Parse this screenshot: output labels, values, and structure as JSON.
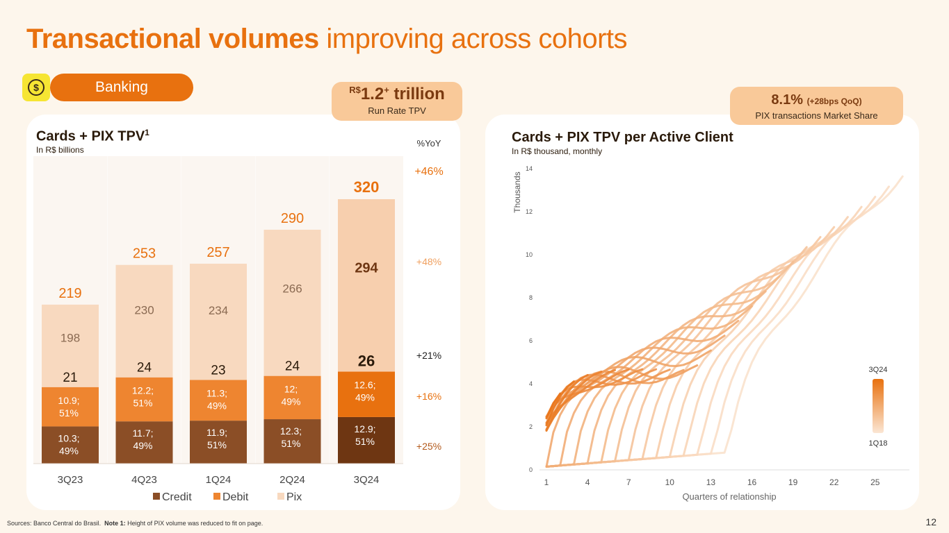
{
  "title_bold": "Transactional volumes",
  "title_rest": " improving across cohorts",
  "tag": {
    "icon": "dollar-coin-icon",
    "label": "Banking",
    "glyph": "$"
  },
  "badge_tpv": {
    "currency": "R$",
    "value": "1.2",
    "plus": "+",
    "unit": " trillion",
    "caption": "Run Rate TPV"
  },
  "badge_share": {
    "value": "8.1%",
    "delta": "(+28bps QoQ)",
    "caption": "PIX transactions Market Share"
  },
  "footer": {
    "sources": "Sources: Banco Central do Brasil.",
    "note_label": "Note 1:",
    "note_text": "Height of PIX volume was reduced to fit on page."
  },
  "page_number": "12",
  "colors": {
    "accent": "#e8710f",
    "credit": "#8b4e26",
    "debit": "#ee8530",
    "pix": "#f8d9bf",
    "card_total": "#2a1a0a"
  },
  "chart_data": [
    {
      "type": "bar",
      "title": "Cards + PIX TPV",
      "title_sup": "1",
      "subtitle": "In R$ billions",
      "yoy_header": "%YoY",
      "categories": [
        "3Q23",
        "4Q23",
        "1Q24",
        "2Q24",
        "3Q24"
      ],
      "series": [
        {
          "name": "Credit",
          "values": [
            10.3,
            11.7,
            11.9,
            12.3,
            12.9
          ],
          "share_labels": [
            "49%",
            "49%",
            "51%",
            "51%",
            "51%"
          ]
        },
        {
          "name": "Debit",
          "values": [
            10.9,
            12.2,
            11.3,
            12.0,
            12.6
          ],
          "share_labels": [
            "51%",
            "51%",
            "49%",
            "49%",
            "49%"
          ]
        },
        {
          "name": "Pix",
          "values": [
            198,
            230,
            234,
            266,
            294
          ]
        }
      ],
      "card_totals": [
        21,
        24,
        23,
        24,
        26
      ],
      "totals": [
        219,
        253,
        257,
        290,
        320
      ],
      "yoy": {
        "total": "+46%",
        "pix": "+48%",
        "cards": "+21%",
        "debit": "+16%",
        "credit": "+25%"
      },
      "legend_position": "bottom"
    },
    {
      "type": "line",
      "title": "Cards + PIX TPV per Active Client",
      "subtitle": "In R$ thousand, monthly",
      "ylabel": "Thousands",
      "xlabel": "Quarters of relationship",
      "xlim": [
        1,
        27
      ],
      "ylim": [
        0,
        14
      ],
      "xticks": [
        1,
        4,
        7,
        10,
        13,
        16,
        19,
        22,
        25
      ],
      "yticks": [
        0,
        2,
        4,
        6,
        8,
        10,
        12,
        14
      ],
      "legend": {
        "newest": "3Q24",
        "oldest": "1Q18"
      },
      "cohort_count": 27,
      "grid": false
    }
  ]
}
